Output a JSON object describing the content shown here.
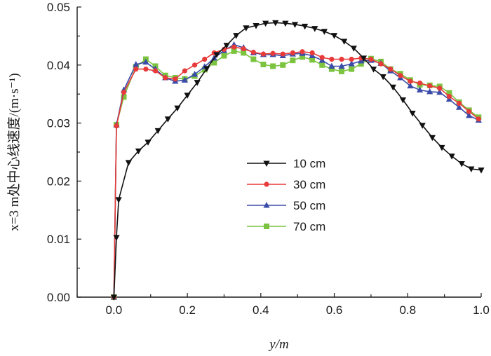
{
  "chart_data": {
    "type": "line",
    "title": "",
    "xlabel": "y/m",
    "ylabel": "x=3 m处中心线速度/(m·s⁻¹)",
    "xlim": [
      -0.1,
      1.0
    ],
    "ylim": [
      0.0,
      0.05
    ],
    "x_ticks": [
      "0.0",
      "0.2",
      "0.4",
      "0.6",
      "0.8",
      "1.0"
    ],
    "y_ticks": [
      "0.00",
      "0.01",
      "0.02",
      "0.03",
      "0.04",
      "0.05"
    ],
    "grid": false,
    "legend_position": "center-right",
    "series": [
      {
        "name": "10 cm",
        "color": "#111111",
        "marker": "triangle-down",
        "x": [
          0.0,
          0.007,
          0.013,
          0.04,
          0.067,
          0.093,
          0.12,
          0.147,
          0.173,
          0.2,
          0.227,
          0.253,
          0.28,
          0.307,
          0.333,
          0.36,
          0.387,
          0.413,
          0.44,
          0.467,
          0.493,
          0.52,
          0.547,
          0.573,
          0.6,
          0.627,
          0.653,
          0.68,
          0.707,
          0.733,
          0.76,
          0.787,
          0.813,
          0.84,
          0.867,
          0.893,
          0.92,
          0.947,
          0.973,
          1.0
        ],
        "y": [
          0.0,
          0.0103,
          0.0168,
          0.0232,
          0.0252,
          0.0267,
          0.0287,
          0.0307,
          0.0326,
          0.0348,
          0.037,
          0.0394,
          0.0418,
          0.0434,
          0.0451,
          0.0464,
          0.0468,
          0.0472,
          0.0473,
          0.0472,
          0.047,
          0.0467,
          0.0463,
          0.0458,
          0.0451,
          0.0441,
          0.0429,
          0.0412,
          0.0393,
          0.038,
          0.0362,
          0.034,
          0.0317,
          0.0296,
          0.0275,
          0.0258,
          0.0243,
          0.023,
          0.0221,
          0.0219
        ]
      },
      {
        "name": "30 cm",
        "color": "#e83a3a",
        "marker": "circle",
        "x": [
          0.0,
          0.007,
          0.027,
          0.06,
          0.087,
          0.113,
          0.14,
          0.167,
          0.193,
          0.22,
          0.247,
          0.273,
          0.3,
          0.327,
          0.353,
          0.38,
          0.407,
          0.433,
          0.46,
          0.487,
          0.513,
          0.54,
          0.567,
          0.593,
          0.62,
          0.647,
          0.673,
          0.7,
          0.727,
          0.753,
          0.78,
          0.807,
          0.833,
          0.86,
          0.887,
          0.913,
          0.94,
          0.967,
          0.993
        ],
        "y": [
          0.0,
          0.0295,
          0.0353,
          0.0393,
          0.0393,
          0.039,
          0.0378,
          0.0376,
          0.039,
          0.04,
          0.041,
          0.0421,
          0.0427,
          0.0431,
          0.0428,
          0.0422,
          0.0419,
          0.042,
          0.0419,
          0.0421,
          0.0423,
          0.0421,
          0.0413,
          0.041,
          0.041,
          0.041,
          0.0412,
          0.041,
          0.0402,
          0.0393,
          0.0382,
          0.0372,
          0.0369,
          0.0364,
          0.036,
          0.0346,
          0.0334,
          0.032,
          0.0307
        ]
      },
      {
        "name": "50 cm",
        "color": "#3b4ca8",
        "marker": "triangle-up",
        "x": [
          0.0,
          0.007,
          0.027,
          0.06,
          0.087,
          0.113,
          0.14,
          0.167,
          0.193,
          0.22,
          0.247,
          0.273,
          0.3,
          0.327,
          0.353,
          0.38,
          0.407,
          0.433,
          0.46,
          0.487,
          0.513,
          0.54,
          0.567,
          0.593,
          0.62,
          0.647,
          0.673,
          0.7,
          0.727,
          0.753,
          0.78,
          0.807,
          0.833,
          0.86,
          0.887,
          0.913,
          0.94,
          0.967,
          0.993
        ],
        "y": [
          0.0,
          0.0297,
          0.0357,
          0.0401,
          0.0405,
          0.0393,
          0.0378,
          0.0372,
          0.0374,
          0.0384,
          0.0397,
          0.0412,
          0.0425,
          0.0435,
          0.043,
          0.0421,
          0.0418,
          0.0418,
          0.0416,
          0.0419,
          0.042,
          0.0416,
          0.0408,
          0.0398,
          0.0398,
          0.0402,
          0.0407,
          0.0408,
          0.0403,
          0.039,
          0.0378,
          0.0364,
          0.0357,
          0.0354,
          0.0353,
          0.0341,
          0.0327,
          0.0313,
          0.0305
        ]
      },
      {
        "name": "70 cm",
        "color": "#7cc43f",
        "marker": "square",
        "x": [
          0.0,
          0.007,
          0.027,
          0.06,
          0.087,
          0.113,
          0.14,
          0.167,
          0.193,
          0.22,
          0.247,
          0.273,
          0.3,
          0.327,
          0.353,
          0.38,
          0.407,
          0.433,
          0.46,
          0.487,
          0.513,
          0.54,
          0.567,
          0.593,
          0.62,
          0.647,
          0.673,
          0.7,
          0.727,
          0.753,
          0.78,
          0.807,
          0.833,
          0.86,
          0.887,
          0.913,
          0.94,
          0.967,
          0.993
        ],
        "y": [
          0.0,
          0.0297,
          0.0345,
          0.0397,
          0.041,
          0.0398,
          0.0382,
          0.0378,
          0.0376,
          0.0381,
          0.0392,
          0.0404,
          0.0416,
          0.0424,
          0.0421,
          0.041,
          0.0401,
          0.0398,
          0.04,
          0.0408,
          0.0414,
          0.0409,
          0.04,
          0.0393,
          0.0389,
          0.0393,
          0.0402,
          0.0411,
          0.0406,
          0.0393,
          0.0385,
          0.0374,
          0.0366,
          0.0365,
          0.0363,
          0.0352,
          0.0336,
          0.0322,
          0.031
        ]
      }
    ]
  }
}
